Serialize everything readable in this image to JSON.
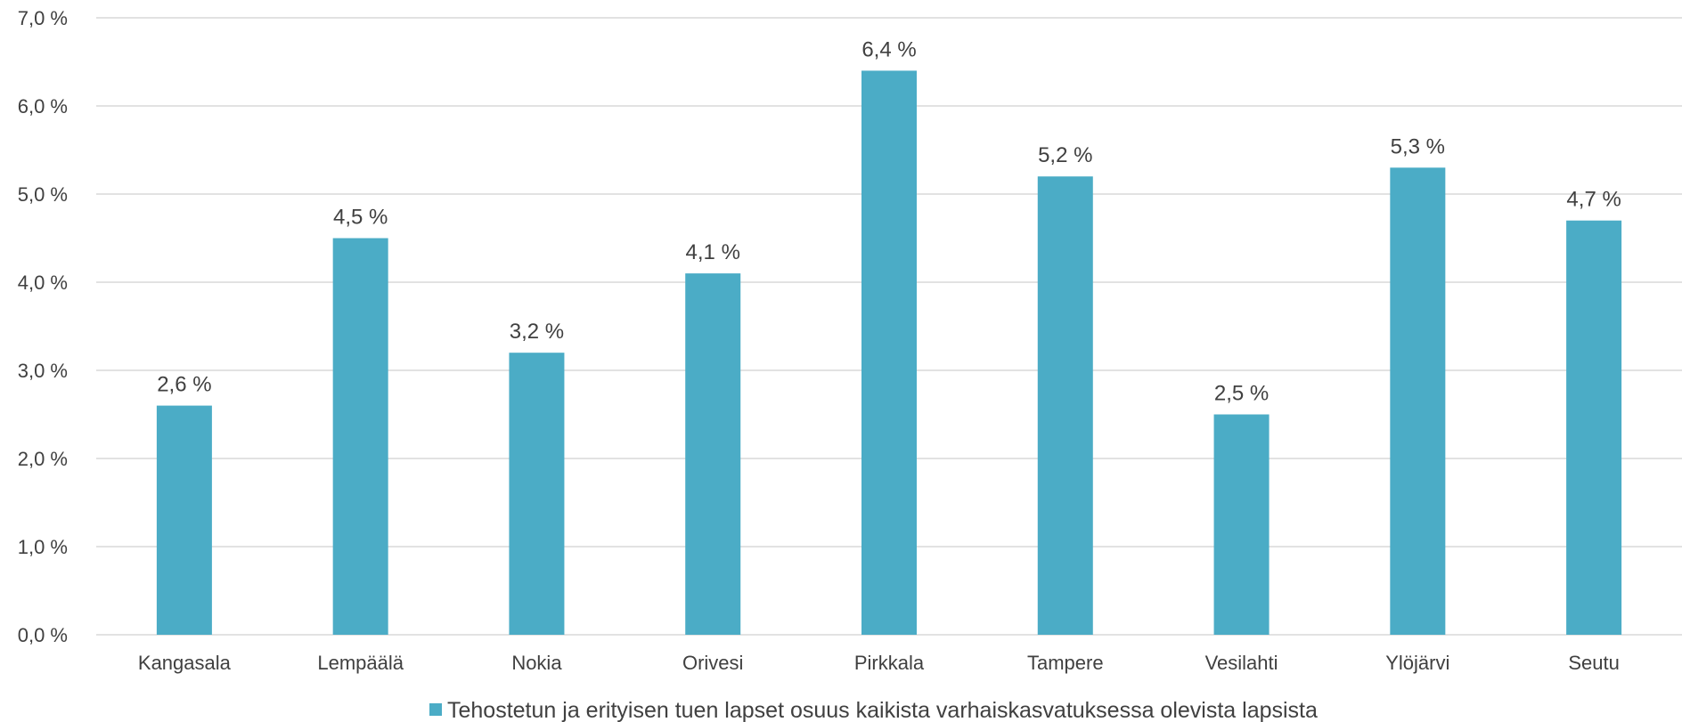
{
  "chart_data": {
    "type": "bar",
    "categories": [
      "Kangasala",
      "Lempäälä",
      "Nokia",
      "Orivesi",
      "Pirkkala",
      "Tampere",
      "Vesilahti",
      "Ylöjärvi",
      "Seutu"
    ],
    "series": [
      {
        "name": "Tehostetun ja erityisen tuen lapset osuus kaikista varhaiskasvatuksessa olevista lapsista",
        "values": [
          2.6,
          4.5,
          3.2,
          4.1,
          6.4,
          5.2,
          2.5,
          5.3,
          4.7
        ],
        "data_labels": [
          "2,6 %",
          "4,5 %",
          "3,2 %",
          "4,1 %",
          "6,4 %",
          "5,2 %",
          "2,5 %",
          "5,3 %",
          "4,7 %"
        ]
      }
    ],
    "yticks": [
      "0,0 %",
      "1,0 %",
      "2,0 %",
      "3,0 %",
      "4,0 %",
      "5,0 %",
      "6,0 %",
      "7,0 %"
    ],
    "ylim": [
      0,
      7
    ],
    "grid": true,
    "legend": "bottom",
    "bar_color": "#4BACC6",
    "grid_color": "#D9D9D9",
    "text_color": "#404040"
  }
}
